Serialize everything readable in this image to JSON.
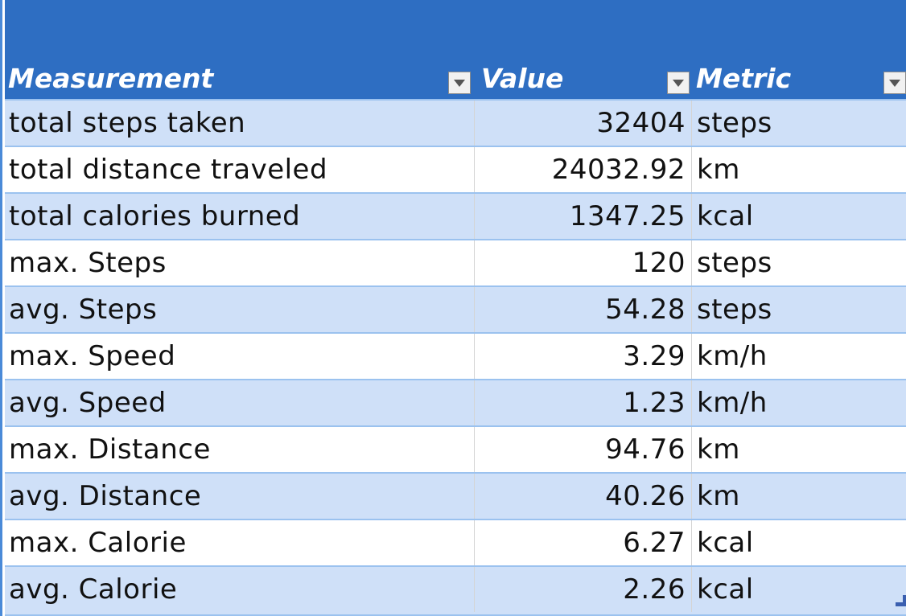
{
  "table": {
    "headers": {
      "measurement": "Measurement",
      "value": "Value",
      "metric": "Metric"
    },
    "rows": [
      {
        "measurement": "total steps taken",
        "value": "32404",
        "metric": "steps"
      },
      {
        "measurement": "total distance traveled",
        "value": "24032.92",
        "metric": "km"
      },
      {
        "measurement": "total calories burned",
        "value": "1347.25",
        "metric": "kcal"
      },
      {
        "measurement": "max. Steps",
        "value": "120",
        "metric": "steps"
      },
      {
        "measurement": "avg. Steps",
        "value": "54.28",
        "metric": "steps"
      },
      {
        "measurement": "max. Speed",
        "value": "3.29",
        "metric": "km/h"
      },
      {
        "measurement": "avg. Speed",
        "value": "1.23",
        "metric": "km/h"
      },
      {
        "measurement": "max. Distance",
        "value": "94.76",
        "metric": "km"
      },
      {
        "measurement": "avg. Distance",
        "value": "40.26",
        "metric": "km"
      },
      {
        "measurement": "max. Calorie",
        "value": "6.27",
        "metric": "kcal"
      },
      {
        "measurement": "avg. Calorie",
        "value": "2.26",
        "metric": "kcal"
      }
    ]
  },
  "icons": {
    "filter": "dropdown-arrow-icon",
    "resize": "table-resize-handle-icon"
  },
  "colors": {
    "header_bg": "#2e6ec2",
    "band_row": "#cfe0f8",
    "plain_row": "#ffffff",
    "row_border": "#9bc2ef"
  }
}
